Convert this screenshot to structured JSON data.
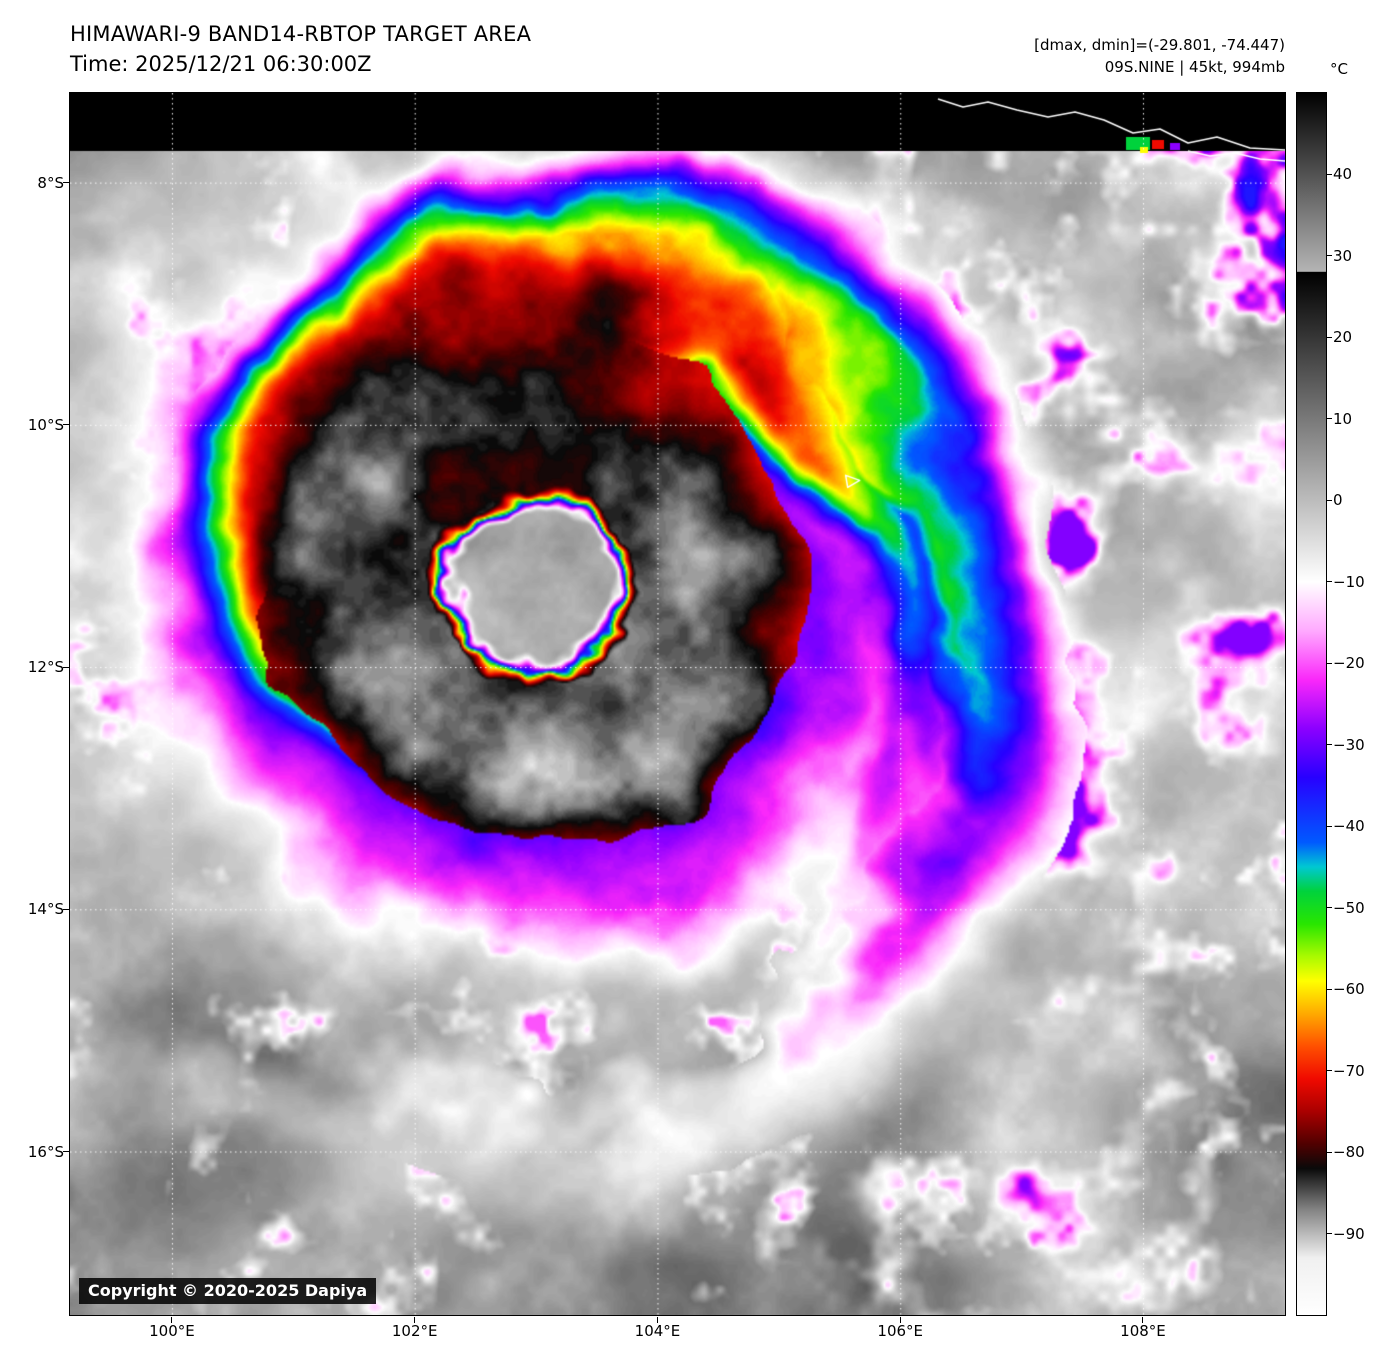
{
  "header": {
    "title": "HIMAWARI-9 BAND14-RBTOP TARGET AREA",
    "time_line": "Time: 2025/12/21 06:30:00Z"
  },
  "annotations": {
    "dmax_dmin": "[dmax, dmin]=(-29.801, -74.447)",
    "storm_info": "09S.NINE | 45kt, 994mb"
  },
  "copyright": "Copyright © 2020-2025 Dapiya",
  "colorbar": {
    "unit": "°C",
    "vmax": 50,
    "vmin": -100,
    "ticks": [
      {
        "label": "40",
        "v": 40
      },
      {
        "label": "30",
        "v": 30
      },
      {
        "label": "20",
        "v": 20
      },
      {
        "label": "10",
        "v": 10
      },
      {
        "label": "0",
        "v": 0
      },
      {
        "label": "−10",
        "v": -10
      },
      {
        "label": "−20",
        "v": -20
      },
      {
        "label": "−30",
        "v": -30
      },
      {
        "label": "−40",
        "v": -40
      },
      {
        "label": "−50",
        "v": -50
      },
      {
        "label": "−60",
        "v": -60
      },
      {
        "label": "−70",
        "v": -70
      },
      {
        "label": "−80",
        "v": -80
      },
      {
        "label": "−90",
        "v": -90
      }
    ],
    "palette": [
      [
        50,
        "#000000"
      ],
      [
        28.1,
        "#b4b4b4"
      ],
      [
        28,
        "#000000"
      ],
      [
        -10,
        "#ffffff"
      ],
      [
        -16,
        "#ffaaff"
      ],
      [
        -22,
        "#fa28fa"
      ],
      [
        -28,
        "#8c00ff"
      ],
      [
        -34,
        "#2800ff"
      ],
      [
        -42,
        "#005aff"
      ],
      [
        -45,
        "#00c8d2"
      ],
      [
        -48,
        "#00d23c"
      ],
      [
        -52,
        "#28e600"
      ],
      [
        -56,
        "#aafa00"
      ],
      [
        -59,
        "#ffff00"
      ],
      [
        -63,
        "#ffaa00"
      ],
      [
        -67,
        "#ff5000"
      ],
      [
        -71,
        "#f00a00"
      ],
      [
        -75,
        "#aa0000"
      ],
      [
        -79,
        "#500000"
      ],
      [
        -82,
        "#0a0a0a"
      ],
      [
        -87,
        "#828282"
      ],
      [
        -93,
        "#f0f0f0"
      ],
      [
        -100,
        "#ffffff"
      ]
    ]
  },
  "axes": {
    "lon": {
      "min": 99.16,
      "max": 109.17,
      "ticks": [
        {
          "label": "100°E",
          "v": 100
        },
        {
          "label": "102°E",
          "v": 102
        },
        {
          "label": "104°E",
          "v": 104
        },
        {
          "label": "106°E",
          "v": 106
        },
        {
          "label": "108°E",
          "v": 108
        }
      ]
    },
    "lat": {
      "min": 7.26,
      "max": 17.35,
      "ticks": [
        {
          "label": "8°S",
          "v": 8
        },
        {
          "label": "10°S",
          "v": 10
        },
        {
          "label": "12°S",
          "v": 12
        },
        {
          "label": "14°S",
          "v": 14
        },
        {
          "label": "16°S",
          "v": 16
        }
      ]
    }
  },
  "map": {
    "storm_center": {
      "lon": 102.9,
      "lat_s": 11.3
    },
    "marker": {
      "lon": 105.6,
      "lat_s": 10.45
    }
  }
}
